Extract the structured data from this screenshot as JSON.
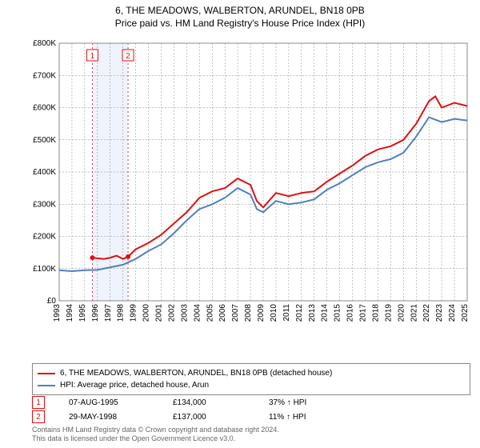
{
  "title": {
    "line1": "6, THE MEADOWS, WALBERTON, ARUNDEL, BN18 0PB",
    "line2": "Price paid vs. HM Land Registry's House Price Index (HPI)",
    "fontsize": 12,
    "color": "#000000"
  },
  "chart": {
    "type": "line",
    "background_color": "#ffffff",
    "plot_border_color": "#888888",
    "grid_color": "#888888",
    "grid_dash": "2,2",
    "band_color": "#eef3fc",
    "xlim": [
      1993,
      2025
    ],
    "ylim": [
      0,
      800000
    ],
    "ytick_step": 100000,
    "ytick_labels": [
      "£0",
      "£100K",
      "£200K",
      "£300K",
      "£400K",
      "£500K",
      "£600K",
      "£700K",
      "£800K"
    ],
    "xticks": [
      1993,
      1994,
      1995,
      1996,
      1997,
      1998,
      1999,
      2000,
      2001,
      2002,
      2003,
      2004,
      2005,
      2006,
      2007,
      2008,
      2009,
      2010,
      2011,
      2012,
      2013,
      2014,
      2015,
      2016,
      2017,
      2018,
      2019,
      2020,
      2021,
      2022,
      2023,
      2024,
      2025
    ],
    "axis_fontsize": 10,
    "axis_label_color": "#000000",
    "sale_band": {
      "start": 1995.6,
      "end": 1998.4
    },
    "sale_markers": [
      {
        "label": "1",
        "x": 1995.6,
        "y": 134000,
        "color": "#e01010"
      },
      {
        "label": "2",
        "x": 1998.4,
        "y": 137000,
        "color": "#e01010"
      }
    ],
    "series": [
      {
        "name": "price_paid",
        "label": "6, THE MEADOWS, WALBERTON, ARUNDEL, BN18 0PB (detached house)",
        "color": "#e01010",
        "line_width": 2,
        "data": [
          [
            1995.6,
            134000
          ],
          [
            1996,
            132000
          ],
          [
            1996.5,
            130000
          ],
          [
            1997,
            134000
          ],
          [
            1997.5,
            140000
          ],
          [
            1998,
            130000
          ],
          [
            1998.4,
            137000
          ],
          [
            1999,
            160000
          ],
          [
            2000,
            180000
          ],
          [
            2001,
            205000
          ],
          [
            2002,
            240000
          ],
          [
            2003,
            275000
          ],
          [
            2004,
            320000
          ],
          [
            2005,
            340000
          ],
          [
            2006,
            350000
          ],
          [
            2007,
            380000
          ],
          [
            2008,
            360000
          ],
          [
            2008.5,
            310000
          ],
          [
            2009,
            290000
          ],
          [
            2010,
            335000
          ],
          [
            2011,
            325000
          ],
          [
            2012,
            335000
          ],
          [
            2013,
            340000
          ],
          [
            2014,
            370000
          ],
          [
            2015,
            395000
          ],
          [
            2016,
            420000
          ],
          [
            2017,
            450000
          ],
          [
            2018,
            470000
          ],
          [
            2019,
            480000
          ],
          [
            2020,
            500000
          ],
          [
            2021,
            550000
          ],
          [
            2022,
            620000
          ],
          [
            2022.5,
            635000
          ],
          [
            2023,
            600000
          ],
          [
            2024,
            615000
          ],
          [
            2025,
            605000
          ]
        ]
      },
      {
        "name": "hpi",
        "label": "HPI: Average price, detached house, Arun",
        "color": "#5080c0",
        "line_width": 2,
        "data": [
          [
            1993,
            95000
          ],
          [
            1994,
            92000
          ],
          [
            1995,
            95000
          ],
          [
            1996,
            96000
          ],
          [
            1997,
            104000
          ],
          [
            1998,
            112000
          ],
          [
            1999,
            130000
          ],
          [
            2000,
            155000
          ],
          [
            2001,
            175000
          ],
          [
            2002,
            210000
          ],
          [
            2003,
            250000
          ],
          [
            2004,
            285000
          ],
          [
            2005,
            300000
          ],
          [
            2006,
            320000
          ],
          [
            2007,
            350000
          ],
          [
            2008,
            330000
          ],
          [
            2008.5,
            285000
          ],
          [
            2009,
            275000
          ],
          [
            2010,
            310000
          ],
          [
            2011,
            300000
          ],
          [
            2012,
            305000
          ],
          [
            2013,
            315000
          ],
          [
            2014,
            345000
          ],
          [
            2015,
            365000
          ],
          [
            2016,
            390000
          ],
          [
            2017,
            415000
          ],
          [
            2018,
            430000
          ],
          [
            2019,
            440000
          ],
          [
            2020,
            460000
          ],
          [
            2021,
            510000
          ],
          [
            2022,
            570000
          ],
          [
            2023,
            555000
          ],
          [
            2024,
            565000
          ],
          [
            2025,
            560000
          ]
        ]
      }
    ]
  },
  "legend": {
    "border_color": "#888888",
    "fontsize": 10,
    "items": [
      {
        "color": "#e01010",
        "label": "6, THE MEADOWS, WALBERTON, ARUNDEL, BN18 0PB (detached house)"
      },
      {
        "color": "#5080c0",
        "label": "HPI: Average price, detached house, Arun"
      }
    ]
  },
  "sales": {
    "fontsize": 10,
    "marker_border_color": "#e01010",
    "marker_text_color": "#e01010",
    "arrow": "↑",
    "rows": [
      {
        "n": "1",
        "date": "07-AUG-1995",
        "price": "£134,000",
        "diff": "37% ↑ HPI"
      },
      {
        "n": "2",
        "date": "29-MAY-1998",
        "price": "£137,000",
        "diff": "11% ↑ HPI"
      }
    ]
  },
  "footnote": {
    "line1": "Contains HM Land Registry data © Crown copyright and database right 2024.",
    "line2": "This data is licensed under the Open Government Licence v3.0.",
    "color": "#666666",
    "fontsize": 9
  }
}
